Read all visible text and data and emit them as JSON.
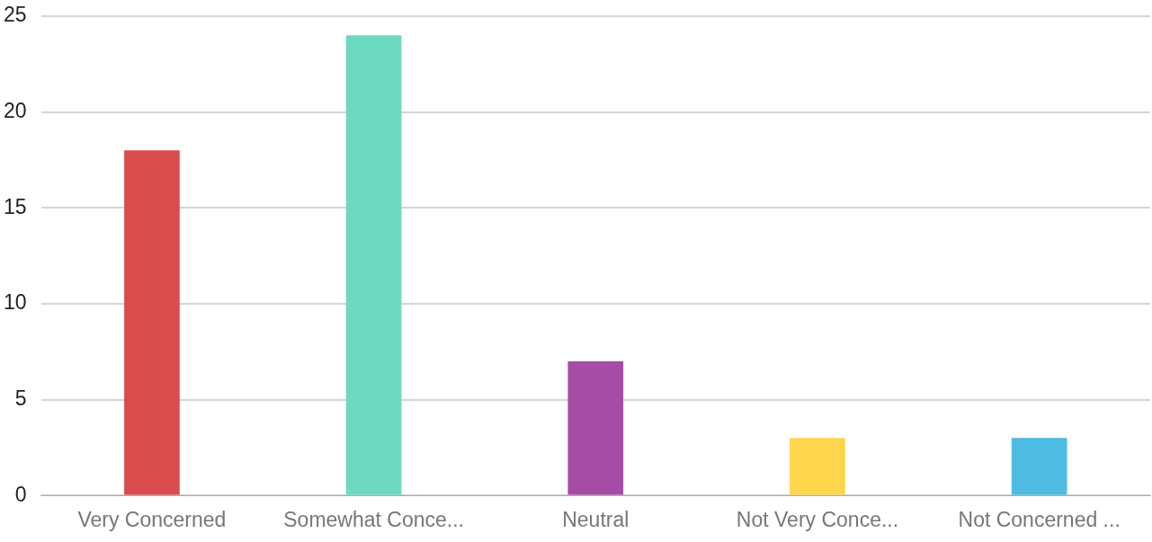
{
  "chart_data": {
    "type": "bar",
    "categories": [
      "Very Concerned",
      "Somewhat Conce...",
      "Neutral",
      "Not Very Conce...",
      "Not Concerned ..."
    ],
    "values": [
      18,
      24,
      7,
      3,
      3
    ],
    "colors": [
      "#d94c4d",
      "#6dd9c1",
      "#a64ca6",
      "#ffd54b",
      "#4dbbe2"
    ],
    "ylim": [
      0,
      25
    ],
    "yticks": [
      0,
      5,
      10,
      15,
      20,
      25
    ],
    "grid": "y",
    "legend": false
  }
}
